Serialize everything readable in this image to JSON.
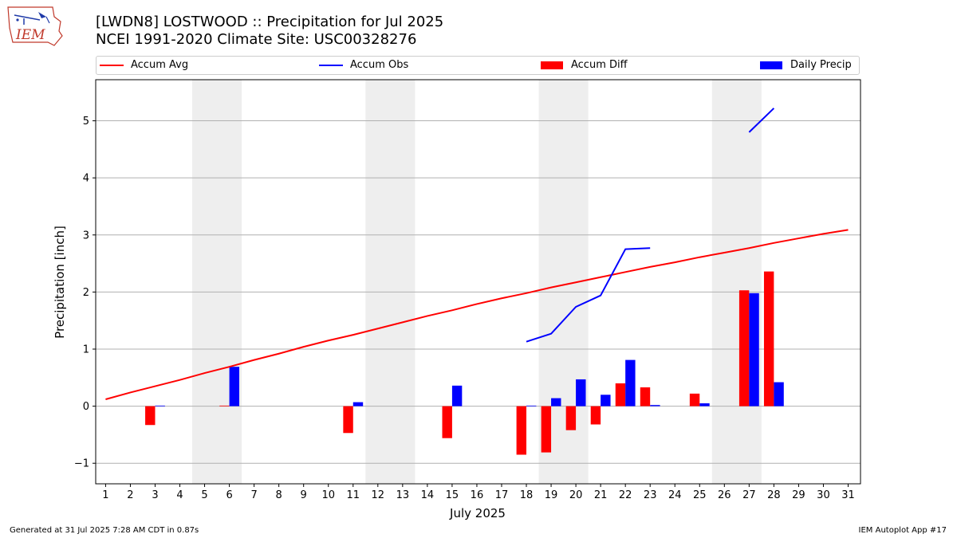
{
  "header": {
    "title_line1": "[LWDN8] LOSTWOOD :: Precipitation for Jul 2025",
    "title_line2": "NCEI 1991-2020 Climate Site: USC00328276",
    "logo_text": "IEM"
  },
  "footer": {
    "generated": "Generated at 31 Jul 2025 7:28 AM CDT in 0.87s",
    "app": "IEM Autoplot App #17"
  },
  "colors": {
    "accum_avg": "#ff0000",
    "accum_obs": "#0000ff",
    "accum_diff": "#ff0000",
    "daily_precip": "#0000ff",
    "weekend_band": "#eeeeee",
    "grid": "#b0b0b0"
  },
  "chart_data": {
    "type": "bar",
    "xlabel": "July 2025",
    "ylabel": "Precipitation [inch]",
    "x": [
      1,
      2,
      3,
      4,
      5,
      6,
      7,
      8,
      9,
      10,
      11,
      12,
      13,
      14,
      15,
      16,
      17,
      18,
      19,
      20,
      21,
      22,
      23,
      24,
      25,
      26,
      27,
      28,
      29,
      30,
      31
    ],
    "xlim": [
      0.6,
      31.5
    ],
    "ylim": [
      -1.36,
      5.72
    ],
    "yticks": [
      -1,
      0,
      1,
      2,
      3,
      4,
      5
    ],
    "ytick_labels": [
      "−1",
      "0",
      "1",
      "2",
      "3",
      "4",
      "5"
    ],
    "grid": "horizontal",
    "legend_position": "top",
    "weekend_bands": [
      [
        5,
        6
      ],
      [
        12,
        13
      ],
      [
        19,
        20
      ],
      [
        26,
        27
      ]
    ],
    "series": [
      {
        "name": "Accum Avg",
        "kind": "line",
        "x": [
          1,
          2,
          3,
          4,
          5,
          6,
          7,
          8,
          9,
          10,
          11,
          12,
          13,
          14,
          15,
          16,
          17,
          18,
          19,
          20,
          21,
          22,
          23,
          24,
          25,
          26,
          27,
          28,
          29,
          30,
          31
        ],
        "values": [
          0.12,
          0.24,
          0.35,
          0.46,
          0.58,
          0.69,
          0.81,
          0.92,
          1.04,
          1.15,
          1.25,
          1.36,
          1.47,
          1.58,
          1.68,
          1.79,
          1.89,
          1.98,
          2.08,
          2.17,
          2.26,
          2.35,
          2.44,
          2.52,
          2.61,
          2.69,
          2.77,
          2.86,
          2.94,
          3.02,
          3.09
        ]
      },
      {
        "name": "Accum Obs",
        "kind": "line",
        "segments": [
          {
            "x": [
              18,
              19,
              20,
              21,
              22,
              23
            ],
            "values": [
              1.13,
              1.27,
              1.74,
              1.94,
              2.75,
              2.77
            ]
          },
          {
            "x": [
              27,
              28
            ],
            "values": [
              4.8,
              5.22
            ]
          }
        ]
      },
      {
        "name": "Accum Diff",
        "kind": "bar",
        "offset": -0.2,
        "x": [
          3,
          6,
          11,
          15,
          18,
          19,
          20,
          21,
          22,
          23,
          25,
          27,
          28
        ],
        "values": [
          -0.33,
          0.01,
          -0.47,
          -0.56,
          -0.85,
          -0.81,
          -0.42,
          -0.32,
          0.4,
          0.33,
          0.22,
          2.03,
          2.36
        ]
      },
      {
        "name": "Daily Precip",
        "kind": "bar",
        "offset": 0.2,
        "x": [
          3,
          6,
          11,
          15,
          18,
          19,
          20,
          21,
          22,
          23,
          25,
          27,
          28
        ],
        "values": [
          0.01,
          0.69,
          0.07,
          0.36,
          0.01,
          0.14,
          0.47,
          0.2,
          0.81,
          0.02,
          0.05,
          1.98,
          0.42
        ]
      }
    ]
  }
}
